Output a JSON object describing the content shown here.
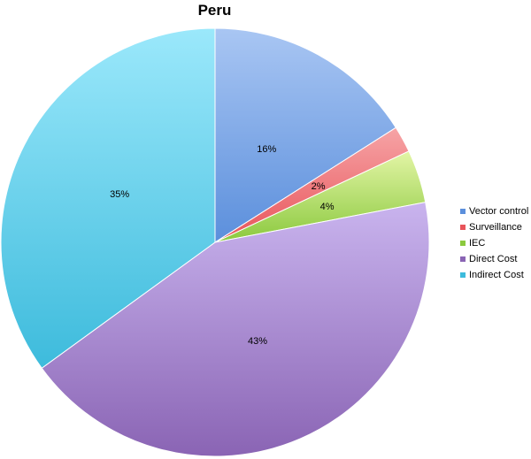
{
  "chart_data": {
    "type": "pie",
    "title": "Peru",
    "slices": [
      {
        "name": "Vector control",
        "value": 16,
        "label": "16%",
        "color": "#5b8fdc",
        "light": "#a9c6f3"
      },
      {
        "name": "Surveillance",
        "value": 2,
        "label": "2%",
        "color": "#e8545a",
        "light": "#f6a4a6"
      },
      {
        "name": "IEC",
        "value": 4,
        "label": "4%",
        "color": "#8bc93e",
        "light": "#e3f5a6"
      },
      {
        "name": "Direct Cost",
        "value": 43,
        "label": "43%",
        "color": "#8a64b4",
        "light": "#c9b4ee"
      },
      {
        "name": "Indirect Cost",
        "value": 35,
        "label": "35%",
        "color": "#3dbbdc",
        "light": "#9be8fb"
      }
    ],
    "legend_position": "right"
  }
}
